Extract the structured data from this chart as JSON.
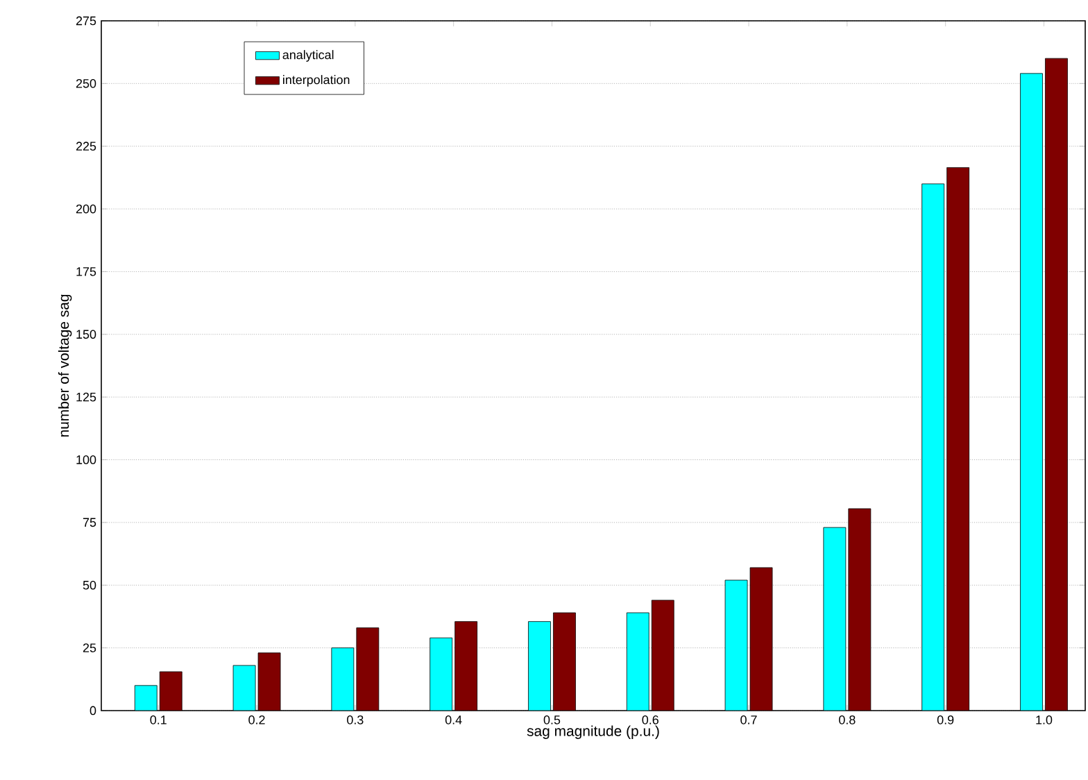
{
  "chart_data": {
    "type": "bar",
    "xlabel": "sag magnitude (p.u.)",
    "ylabel": "number of voltage sag",
    "categories": [
      "0.1",
      "0.2",
      "0.3",
      "0.4",
      "0.5",
      "0.6",
      "0.7",
      "0.8",
      "0.9",
      "1.0"
    ],
    "series": [
      {
        "name": "analytical",
        "color": "#00ffff",
        "values": [
          10,
          18,
          25,
          29,
          35.5,
          39,
          52,
          73,
          210,
          254
        ]
      },
      {
        "name": "interpolation",
        "color": "#800000",
        "values": [
          15.5,
          23,
          33,
          35.5,
          39,
          44,
          57,
          80.5,
          216.5,
          260
        ]
      }
    ],
    "ylim": [
      0,
      275
    ],
    "yticks": [
      0,
      25,
      50,
      75,
      100,
      125,
      150,
      175,
      200,
      225,
      250,
      275
    ],
    "grid": "y",
    "legend": "top left"
  }
}
